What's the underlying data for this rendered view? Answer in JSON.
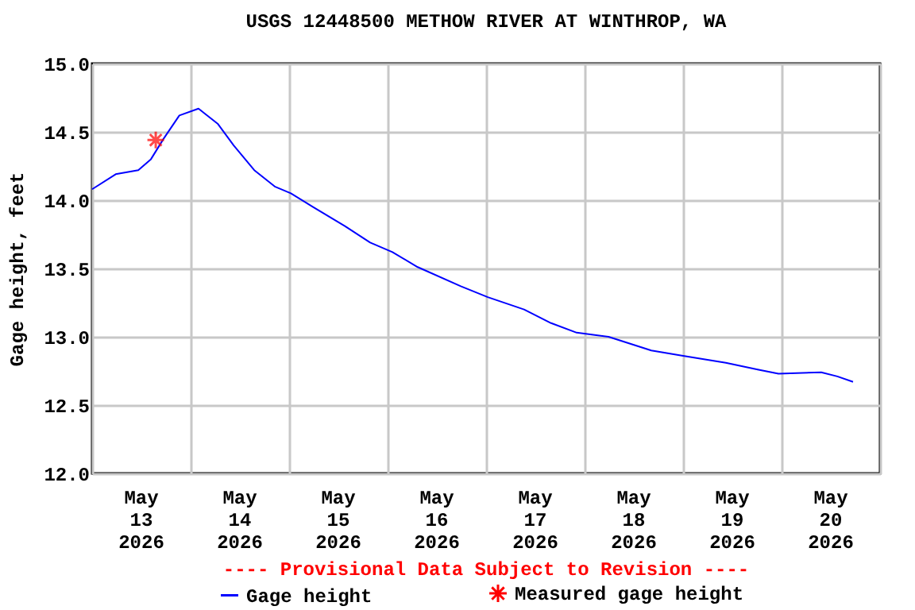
{
  "chart_data": {
    "type": "line",
    "title": "USGS 12448500 METHOW RIVER AT WINTHROP, WA",
    "ylabel": "Gage height, feet",
    "annotations": [
      "---- Provisional Data Subject to Revision ----"
    ],
    "series": [
      {
        "name": "Gage height",
        "type": "line",
        "color": "#0000ff",
        "marker": "none",
        "x": [
          "2026-05-13T00:00",
          "2026-05-13T05:45",
          "2026-05-13T11:15",
          "2026-05-13T14:20",
          "2026-05-13T17:25",
          "2026-05-13T21:15",
          "2026-05-14T01:55",
          "2026-05-14T06:35",
          "2026-05-14T10:30",
          "2026-05-14T15:30",
          "2026-05-14T20:30",
          "2026-05-15T00:25",
          "2026-05-15T05:50",
          "2026-05-15T13:35",
          "2026-05-15T19:45",
          "2026-05-16T01:10",
          "2026-05-16T07:20",
          "2026-05-16T17:50",
          "2026-05-17T00:25",
          "2026-05-17T09:15",
          "2026-05-17T15:50",
          "2026-05-17T22:05",
          "2026-05-18T05:50",
          "2026-05-18T16:15",
          "2026-05-19T00:00",
          "2026-05-19T10:25",
          "2026-05-19T18:10",
          "2026-05-19T23:15",
          "2026-05-20T09:40",
          "2026-05-20T13:35",
          "2026-05-20T17:25"
        ],
        "values": [
          14.08,
          14.19,
          14.22,
          14.3,
          14.45,
          14.62,
          14.67,
          14.56,
          14.4,
          14.22,
          14.1,
          14.05,
          13.95,
          13.81,
          13.69,
          13.62,
          13.51,
          13.37,
          13.29,
          13.2,
          13.1,
          13.03,
          13.0,
          12.9,
          12.86,
          12.81,
          12.76,
          12.73,
          12.74,
          12.71,
          12.67
        ]
      },
      {
        "name": "Measured gage height",
        "type": "scatter",
        "color": "#ff0000",
        "marker": "cross",
        "x": [
          "2026-05-13T15:30"
        ],
        "values": [
          14.44
        ]
      }
    ],
    "xlim": [
      "2026-05-13T00:00",
      "2026-05-21T00:00"
    ],
    "xticks": [
      {
        "value": "2026-05-13T00:00",
        "label": null
      },
      {
        "value": "2026-05-13T12:00",
        "label": "May\n13\n2026"
      },
      {
        "value": "2026-05-14T00:00",
        "label": null
      },
      {
        "value": "2026-05-14T12:00",
        "label": "May\n14\n2026"
      },
      {
        "value": "2026-05-15T00:00",
        "label": null
      },
      {
        "value": "2026-05-15T12:00",
        "label": "May\n15\n2026"
      },
      {
        "value": "2026-05-16T00:00",
        "label": null
      },
      {
        "value": "2026-05-16T12:00",
        "label": "May\n16\n2026"
      },
      {
        "value": "2026-05-17T00:00",
        "label": null
      },
      {
        "value": "2026-05-17T12:00",
        "label": "May\n17\n2026"
      },
      {
        "value": "2026-05-18T00:00",
        "label": null
      },
      {
        "value": "2026-05-18T12:00",
        "label": "May\n18\n2026"
      },
      {
        "value": "2026-05-19T00:00",
        "label": null
      },
      {
        "value": "2026-05-19T12:00",
        "label": "May\n19\n2026"
      },
      {
        "value": "2026-05-20T00:00",
        "label": null
      },
      {
        "value": "2026-05-20T12:00",
        "label": "May\n20\n2026"
      },
      {
        "value": "2026-05-21T00:00",
        "label": null
      }
    ],
    "ylim": [
      12.0,
      15.0
    ],
    "yticks": [
      {
        "value": 12.0,
        "label": "12.0"
      },
      {
        "value": 12.5,
        "label": "12.5"
      },
      {
        "value": 13.0,
        "label": "13.0"
      },
      {
        "value": 13.5,
        "label": "13.5"
      },
      {
        "value": 14.0,
        "label": "14.0"
      },
      {
        "value": 14.5,
        "label": "14.5"
      },
      {
        "value": 15.0,
        "label": "15.0"
      }
    ],
    "grid": true,
    "legend": "bottom"
  }
}
